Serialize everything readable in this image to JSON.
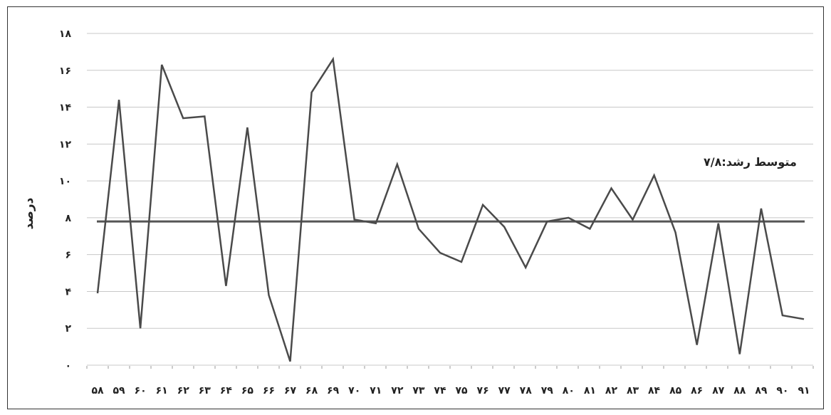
{
  "chart_data": {
    "type": "line",
    "ylabel": "درصد",
    "ylim": [
      0,
      18
    ],
    "grid": true,
    "y_ticks": [
      {
        "v": 0,
        "label": "۰"
      },
      {
        "v": 2,
        "label": "۲"
      },
      {
        "v": 4,
        "label": "۴"
      },
      {
        "v": 6,
        "label": "۶"
      },
      {
        "v": 8,
        "label": "۸"
      },
      {
        "v": 10,
        "label": "۱۰"
      },
      {
        "v": 12,
        "label": "۱۲"
      },
      {
        "v": 14,
        "label": "۱۴"
      },
      {
        "v": 16,
        "label": "۱۶"
      },
      {
        "v": 18,
        "label": "۱۸"
      }
    ],
    "x_labels": [
      "۵۸",
      "۵۹",
      "۶۰",
      "۶۱",
      "۶۲",
      "۶۳",
      "۶۴",
      "۶۵",
      "۶۶",
      "۶۷",
      "۶۸",
      "۶۹",
      "۷۰",
      "۷۱",
      "۷۲",
      "۷۳",
      "۷۴",
      "۷۵",
      "۷۶",
      "۷۷",
      "۷۸",
      "۷۹",
      "۸۰",
      "۸۱",
      "۸۲",
      "۸۳",
      "۸۴",
      "۸۵",
      "۸۶",
      "۸۷",
      "۸۸",
      "۸۹",
      "۹۰",
      "۹۱"
    ],
    "x": [
      58,
      59,
      60,
      61,
      62,
      63,
      64,
      65,
      66,
      67,
      68,
      69,
      70,
      71,
      72,
      73,
      74,
      75,
      76,
      77,
      78,
      79,
      80,
      81,
      82,
      83,
      84,
      85,
      86,
      87,
      88,
      89,
      90,
      91
    ],
    "series": [
      {
        "values": [
          3.9,
          14.4,
          2.0,
          16.3,
          13.4,
          13.5,
          4.3,
          12.9,
          3.8,
          0.2,
          14.8,
          16.6,
          7.9,
          7.7,
          10.9,
          7.4,
          6.1,
          5.6,
          8.7,
          7.5,
          5.3,
          7.8,
          8.0,
          7.4,
          9.6,
          7.9,
          10.3,
          7.2,
          1.1,
          7.7,
          0.6,
          8.5,
          2.7,
          2.5
        ]
      }
    ],
    "reference_line": {
      "value": 7.8,
      "label": "متوسط رشد:۷/۸"
    },
    "colors": {
      "line": "#4a4a4a",
      "average": "#555555",
      "grid": "#c8c8c8"
    }
  }
}
